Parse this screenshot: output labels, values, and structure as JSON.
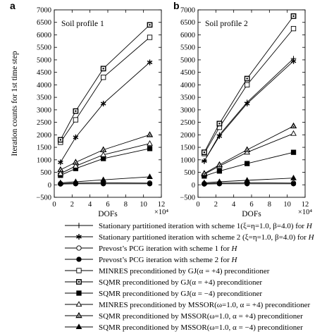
{
  "panel_labels": [
    "a",
    "b"
  ],
  "legend": {
    "entries": [
      {
        "id": "sp1",
        "marker": "plus",
        "parts": [
          {
            "t": "Stationary partitioned iteration with scheme 1(ξ=η=1.0, β=4.0) for "
          },
          {
            "t": "H",
            "italic": true
          }
        ]
      },
      {
        "id": "sp2",
        "marker": "star",
        "parts": [
          {
            "t": "Stationary partitioned iteration with scheme 2 (ξ=η=1.0, β=4.0) for "
          },
          {
            "t": "H",
            "italic": true
          }
        ]
      },
      {
        "id": "pcg1",
        "marker": "circle-open",
        "parts": [
          {
            "t": "Prevost’s PCG iteration with scheme 1 for "
          },
          {
            "t": "H",
            "italic": true
          }
        ]
      },
      {
        "id": "pcg2",
        "marker": "circle-filled",
        "parts": [
          {
            "t": "Prevost’s PCG iteration with scheme 2 for "
          },
          {
            "t": "H",
            "italic": true
          }
        ]
      },
      {
        "id": "minres_gj",
        "marker": "square-open",
        "parts": [
          {
            "t": "MINRES preconditioned by GJ(α = +4) preconditioner"
          }
        ]
      },
      {
        "id": "sqmr_gj_p",
        "marker": "square-dot",
        "parts": [
          {
            "t": "SQMR preconditioned by GJ(α = +4) preconditioner"
          }
        ]
      },
      {
        "id": "sqmr_gj_m",
        "marker": "square-filled",
        "parts": [
          {
            "t": "SQMR preconditioned by GJ(α = −4) preconditioner"
          }
        ]
      },
      {
        "id": "minres_mssor",
        "marker": "triangle-open",
        "parts": [
          {
            "t": "MINRES preconditioned by MSSOR(ω=1.0, α = +4) preconditioner"
          }
        ]
      },
      {
        "id": "sqmr_mssor_p",
        "marker": "triangle-dot",
        "parts": [
          {
            "t": "SQMR preconditioned by MSSOR(ω=1.0, α = +4) preconditioner"
          }
        ]
      },
      {
        "id": "sqmr_mssor_m",
        "marker": "triangle-filled",
        "parts": [
          {
            "t": "SQMR preconditioned by MSSOR(ω=1.0, α = −4) preconditioner"
          }
        ]
      }
    ]
  },
  "chart_data": [
    {
      "type": "line",
      "panel": "a",
      "title": "Soil profile 1",
      "xlabel": "DOFs",
      "x_multiplier": "×10⁴",
      "ylabel": "Iteration counts for 1st time step",
      "xlim": [
        0,
        12
      ],
      "ylim": [
        -500,
        7000
      ],
      "xticks": [
        0,
        2,
        4,
        6,
        8,
        10,
        12
      ],
      "yticks": [
        -500,
        0,
        500,
        1000,
        1500,
        2000,
        2500,
        3000,
        3500,
        4000,
        4500,
        5000,
        5500,
        6000,
        6500,
        7000
      ],
      "grid": false,
      "x": [
        0.7,
        2.4,
        5.5,
        10.7
      ],
      "series": [
        {
          "id": "sp1",
          "values": [
            null,
            null,
            null,
            null
          ]
        },
        {
          "id": "sp2",
          "values": [
            900,
            1900,
            3250,
            4900
          ]
        },
        {
          "id": "pcg1",
          "values": [
            50,
            70,
            80,
            70
          ]
        },
        {
          "id": "pcg2",
          "values": [
            30,
            40,
            40,
            40
          ]
        },
        {
          "id": "minres_gj",
          "values": [
            1700,
            2600,
            4300,
            5900
          ]
        },
        {
          "id": "sqmr_gj_p",
          "values": [
            1800,
            2950,
            4650,
            6400
          ]
        },
        {
          "id": "sqmr_gj_m",
          "values": [
            380,
            650,
            1050,
            1450
          ]
        },
        {
          "id": "minres_mssor",
          "values": [
            450,
            750,
            1200,
            1650
          ]
        },
        {
          "id": "sqmr_mssor_p",
          "values": [
            600,
            900,
            1400,
            2000
          ]
        },
        {
          "id": "sqmr_mssor_m",
          "values": [
            80,
            120,
            200,
            320
          ]
        }
      ]
    },
    {
      "type": "line",
      "panel": "b",
      "title": "Soil profile 2",
      "xlabel": "DOFs",
      "x_multiplier": "×10⁴",
      "ylabel": "",
      "xlim": [
        0,
        12
      ],
      "ylim": [
        -500,
        7000
      ],
      "xticks": [
        0,
        2,
        4,
        6,
        8,
        10,
        12
      ],
      "yticks": [
        -500,
        0,
        500,
        1000,
        1500,
        2000,
        2500,
        3000,
        3500,
        4000,
        4500,
        5000,
        5500,
        6000,
        6500,
        7000
      ],
      "grid": false,
      "x": [
        0.7,
        2.4,
        5.5,
        10.7
      ],
      "series": [
        {
          "id": "sp1",
          "values": [
            950,
            2000,
            3300,
            5050
          ]
        },
        {
          "id": "sp2",
          "values": [
            950,
            1950,
            3250,
            4950
          ]
        },
        {
          "id": "pcg1",
          "values": [
            50,
            70,
            80,
            70
          ]
        },
        {
          "id": "pcg2",
          "values": [
            30,
            40,
            40,
            40
          ]
        },
        {
          "id": "minres_gj",
          "values": [
            1250,
            2300,
            4000,
            6250
          ]
        },
        {
          "id": "sqmr_gj_p",
          "values": [
            1300,
            2450,
            4250,
            6750
          ]
        },
        {
          "id": "sqmr_gj_m",
          "values": [
            350,
            550,
            850,
            1300
          ]
        },
        {
          "id": "minres_mssor",
          "values": [
            420,
            750,
            1300,
            2050
          ]
        },
        {
          "id": "sqmr_mssor_p",
          "values": [
            450,
            800,
            1400,
            2350
          ]
        },
        {
          "id": "sqmr_mssor_m",
          "values": [
            80,
            120,
            180,
            270
          ]
        }
      ]
    }
  ]
}
